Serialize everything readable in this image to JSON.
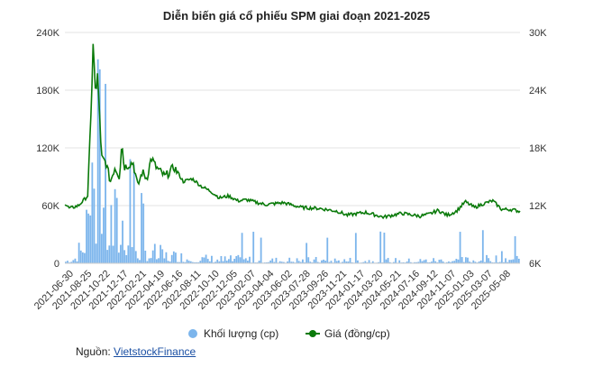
{
  "chart_data": {
    "type": "bar+line",
    "title": "Diễn biến giá cổ phiếu SPM giai đoạn 2021-2025",
    "x_ticks": [
      "2021-06-30",
      "2021-08-25",
      "2021-10-22",
      "2021-12-17",
      "2022-02-21",
      "2022-04-19",
      "2022-06-16",
      "2022-08-11",
      "2022-10-10",
      "2022-12-05",
      "2023-02-07",
      "2023-04-04",
      "2023-06-02",
      "2023-07-28",
      "2023-09-26",
      "2023-11-21",
      "2024-01-17",
      "2024-03-20",
      "2024-05-21",
      "2024-07-16",
      "2024-09-12",
      "2024-11-07",
      "2025-01-03",
      "2025-03-07",
      "2025-05-08"
    ],
    "y_left": {
      "ticks": [
        "0",
        "60K",
        "120K",
        "180K",
        "240K"
      ],
      "range": [
        0,
        240000
      ],
      "unit": "cp"
    },
    "y_right": {
      "ticks": [
        "6K",
        "12K",
        "18K",
        "24K",
        "30K"
      ],
      "range": [
        6000,
        30000
      ],
      "unit": "đồng/cp"
    },
    "grid": true,
    "legend_position": "bottom",
    "series": [
      {
        "name": "Khối lượng (cp)",
        "type": "bar",
        "axis": "left",
        "color": "#7cb5ec",
        "anchors_x": [
          0.0,
          0.02,
          0.035,
          0.05,
          0.06,
          0.07,
          0.08,
          0.09,
          0.1,
          0.11,
          0.12,
          0.13,
          0.14,
          0.15,
          0.16,
          0.17,
          0.18,
          0.2,
          0.22,
          0.24,
          0.26,
          0.28,
          0.3,
          0.35,
          0.4,
          0.45,
          0.5,
          0.55,
          0.6,
          0.65,
          0.7,
          0.75,
          0.8,
          0.85,
          0.9,
          0.95,
          0.97,
          1.0
        ],
        "anchors_y": [
          3000,
          8000,
          20000,
          60000,
          130000,
          90000,
          70000,
          60000,
          55000,
          50000,
          45000,
          60000,
          40000,
          35000,
          20000,
          18000,
          15000,
          12000,
          10000,
          9000,
          8000,
          7000,
          6000,
          5000,
          5000,
          4000,
          4000,
          4000,
          4000,
          4000,
          4000,
          3000,
          4000,
          4000,
          4500,
          6000,
          8000,
          5000
        ]
      },
      {
        "name": "Giá (đồng/cp)",
        "type": "line",
        "axis": "right",
        "color": "#0a7a0a",
        "anchors_x": [
          0.0,
          0.01,
          0.03,
          0.05,
          0.058,
          0.062,
          0.068,
          0.072,
          0.08,
          0.09,
          0.1,
          0.11,
          0.12,
          0.125,
          0.13,
          0.15,
          0.16,
          0.17,
          0.18,
          0.19,
          0.2,
          0.22,
          0.24,
          0.26,
          0.28,
          0.3,
          0.32,
          0.34,
          0.36,
          0.38,
          0.4,
          0.44,
          0.48,
          0.52,
          0.56,
          0.6,
          0.62,
          0.66,
          0.7,
          0.74,
          0.78,
          0.8,
          0.82,
          0.84,
          0.86,
          0.88,
          0.9,
          0.92,
          0.94,
          0.96,
          0.98,
          1.0
        ],
        "anchors_y": [
          12200,
          11700,
          12000,
          13000,
          22000,
          29000,
          23000,
          26000,
          17000,
          16500,
          14500,
          16000,
          15000,
          18700,
          16000,
          16500,
          14000,
          15500,
          14800,
          17000,
          16000,
          15000,
          16000,
          14500,
          14800,
          14000,
          13500,
          12800,
          13000,
          12500,
          12600,
          12100,
          12300,
          11800,
          11700,
          11400,
          11000,
          11300,
          10800,
          11200,
          10900,
          11100,
          11500,
          11000,
          11400,
          12400,
          11800,
          12200,
          12500,
          11600,
          11600,
          11400
        ]
      }
    ]
  },
  "legend": {
    "volume_label": "Khối lượng (cp)",
    "price_label": "Giá (đồng/cp)"
  },
  "source": {
    "label": "Nguồn:",
    "link_text": "VietstockFinance"
  }
}
